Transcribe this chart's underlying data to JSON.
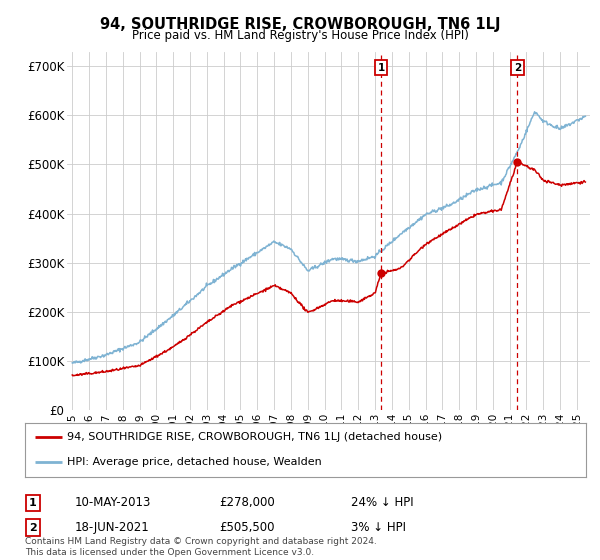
{
  "title": "94, SOUTHRIDGE RISE, CROWBOROUGH, TN6 1LJ",
  "subtitle": "Price paid vs. HM Land Registry's House Price Index (HPI)",
  "ylabel_ticks": [
    "£0",
    "£100K",
    "£200K",
    "£300K",
    "£400K",
    "£500K",
    "£600K",
    "£700K"
  ],
  "ytick_values": [
    0,
    100000,
    200000,
    300000,
    400000,
    500000,
    600000,
    700000
  ],
  "ylim": [
    0,
    730000
  ],
  "xlim_start": 1994.7,
  "xlim_end": 2025.8,
  "transaction1": {
    "date": "10-MAY-2013",
    "price": 278000,
    "pct": "24% ↓ HPI",
    "x": 2013.36,
    "label": "1"
  },
  "transaction2": {
    "date": "18-JUN-2021",
    "price": 505500,
    "pct": "3% ↓ HPI",
    "x": 2021.46,
    "label": "2"
  },
  "red_line_color": "#cc0000",
  "blue_line_color": "#7fb3d3",
  "dashed_line_color": "#cc0000",
  "legend_label_red": "94, SOUTHRIDGE RISE, CROWBOROUGH, TN6 1LJ (detached house)",
  "legend_label_blue": "HPI: Average price, detached house, Wealden",
  "footnote": "Contains HM Land Registry data © Crown copyright and database right 2024.\nThis data is licensed under the Open Government Licence v3.0.",
  "table_rows": [
    {
      "num": "1",
      "date": "10-MAY-2013",
      "price": "£278,000",
      "pct": "24% ↓ HPI"
    },
    {
      "num": "2",
      "date": "18-JUN-2021",
      "price": "£505,500",
      "pct": "3% ↓ HPI"
    }
  ],
  "background_color": "#ffffff",
  "grid_color": "#cccccc",
  "hpi_knots": [
    [
      1995.0,
      95000
    ],
    [
      1997.0,
      112000
    ],
    [
      1999.0,
      138000
    ],
    [
      2001.0,
      192000
    ],
    [
      2003.0,
      252000
    ],
    [
      2004.5,
      288000
    ],
    [
      2007.0,
      342000
    ],
    [
      2008.0,
      328000
    ],
    [
      2009.0,
      283000
    ],
    [
      2010.5,
      308000
    ],
    [
      2012.0,
      303000
    ],
    [
      2013.0,
      313000
    ],
    [
      2014.5,
      358000
    ],
    [
      2016.0,
      398000
    ],
    [
      2017.5,
      418000
    ],
    [
      2019.0,
      448000
    ],
    [
      2020.5,
      463000
    ],
    [
      2021.5,
      528000
    ],
    [
      2022.5,
      608000
    ],
    [
      2023.0,
      588000
    ],
    [
      2024.0,
      572000
    ],
    [
      2025.5,
      598000
    ]
  ],
  "red_knots": [
    [
      1995.0,
      70000
    ],
    [
      1997.0,
      78000
    ],
    [
      1999.0,
      90000
    ],
    [
      2001.0,
      128000
    ],
    [
      2003.0,
      178000
    ],
    [
      2004.5,
      213000
    ],
    [
      2007.0,
      253000
    ],
    [
      2008.0,
      238000
    ],
    [
      2009.0,
      198000
    ],
    [
      2010.5,
      223000
    ],
    [
      2012.0,
      220000
    ],
    [
      2013.0,
      238000
    ],
    [
      2013.36,
      278000
    ],
    [
      2014.5,
      288000
    ],
    [
      2016.0,
      338000
    ],
    [
      2017.5,
      368000
    ],
    [
      2019.0,
      398000
    ],
    [
      2020.5,
      408000
    ],
    [
      2021.46,
      505500
    ],
    [
      2022.5,
      488000
    ],
    [
      2023.0,
      468000
    ],
    [
      2024.0,
      458000
    ],
    [
      2025.5,
      465000
    ]
  ]
}
